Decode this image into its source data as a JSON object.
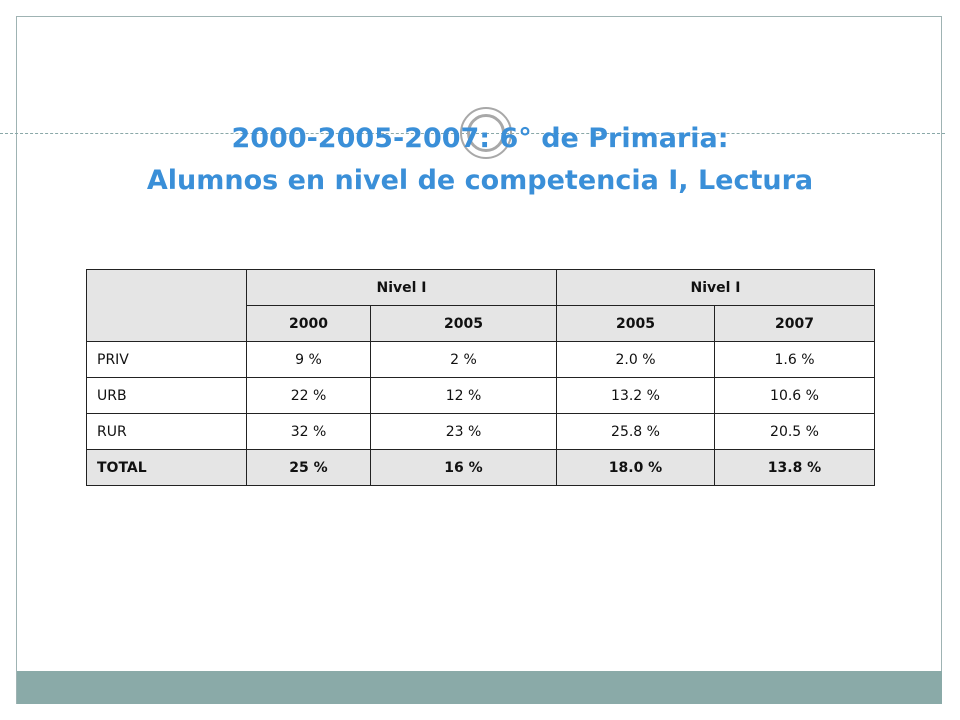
{
  "title": {
    "line1": "2000-2005-2007: 6° de Primaria:",
    "line2": "Alumnos en nivel de competencia I, Lectura"
  },
  "table": {
    "group_headers": [
      "Nivel I",
      "Nivel I"
    ],
    "years": [
      "2000",
      "2005",
      "2005",
      "2007"
    ],
    "rows": [
      {
        "label": "PRIV",
        "values": [
          "9 %",
          "2 %",
          "2.0 %",
          "1.6 %"
        ]
      },
      {
        "label": "URB",
        "values": [
          "22 %",
          "12 %",
          "13.2 %",
          "10.6 %"
        ]
      },
      {
        "label": "RUR",
        "values": [
          "32 %",
          "23 %",
          "25.8 %",
          "20.5 %"
        ]
      },
      {
        "label": "TOTAL",
        "values": [
          "25 %",
          "16 %",
          "18.0 %",
          "13.8 %"
        ]
      }
    ]
  },
  "colors": {
    "title": "#3a8fd8",
    "footer_bar": "#8aaaa8",
    "header_fill": "#e5e5e5"
  }
}
